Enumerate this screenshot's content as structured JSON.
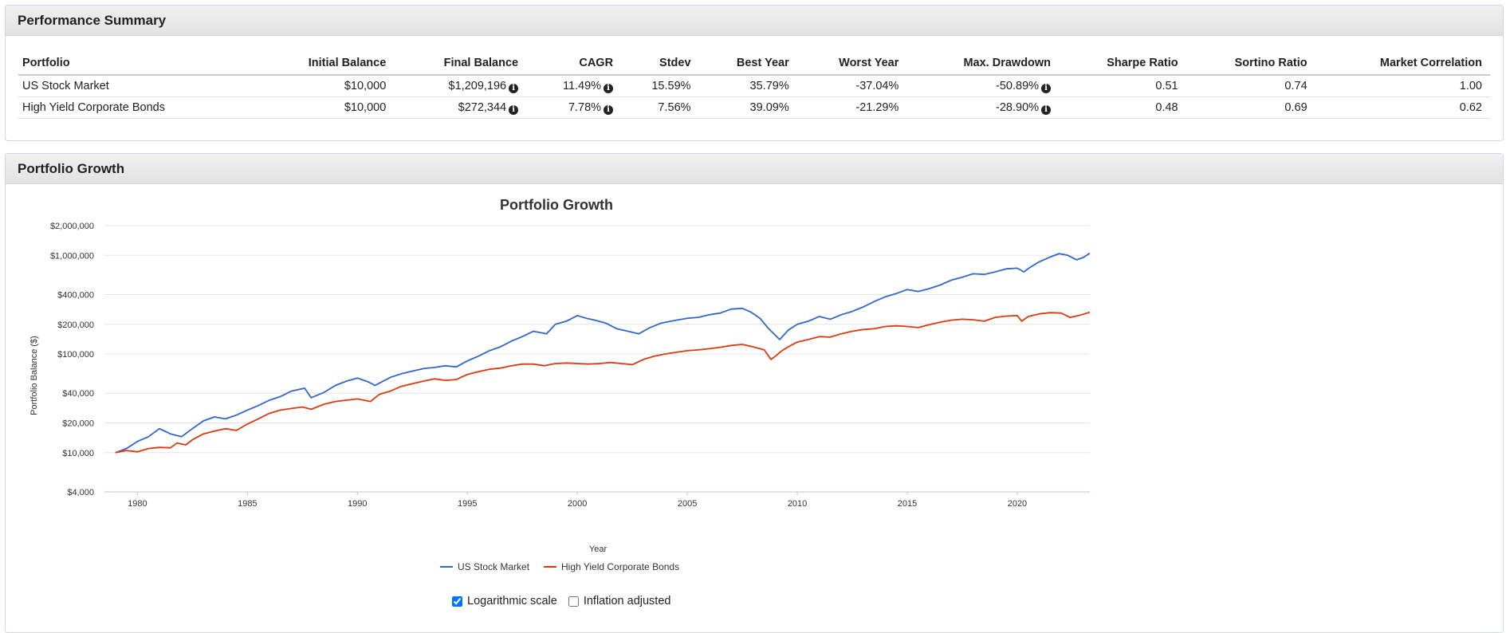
{
  "summary": {
    "heading": "Performance Summary",
    "columns": [
      "Portfolio",
      "Initial Balance",
      "Final Balance",
      "CAGR",
      "Stdev",
      "Best Year",
      "Worst Year",
      "Max. Drawdown",
      "Sharpe Ratio",
      "Sortino Ratio",
      "Market Correlation"
    ],
    "rows": [
      {
        "portfolio": "US Stock Market",
        "initial": "$10,000",
        "final": "$1,209,196",
        "cagr": "11.49%",
        "stdev": "15.59%",
        "best": "35.79%",
        "worst": "-37.04%",
        "drawdown": "-50.89%",
        "sharpe": "0.51",
        "sortino": "0.74",
        "correlation": "1.00"
      },
      {
        "portfolio": "High Yield Corporate Bonds",
        "initial": "$10,000",
        "final": "$272,344",
        "cagr": "7.78%",
        "stdev": "7.56%",
        "best": "39.09%",
        "worst": "-21.29%",
        "drawdown": "-28.90%",
        "sharpe": "0.48",
        "sortino": "0.69",
        "correlation": "0.62"
      }
    ]
  },
  "growth": {
    "heading": "Portfolio Growth",
    "options": {
      "log_label": "Logarithmic scale",
      "log_checked": true,
      "inflation_label": "Inflation adjusted",
      "inflation_checked": false
    }
  },
  "icons": {
    "info": "info-circle-icon"
  },
  "chart_data": {
    "type": "line",
    "title": "Portfolio Growth",
    "xlabel": "Year",
    "ylabel": "Portfolio Balance ($)",
    "yscale": "log",
    "ylim": [
      4000,
      2000000
    ],
    "xlim": [
      1978.5,
      2023.3
    ],
    "yticks": [
      4000,
      10000,
      20000,
      40000,
      100000,
      200000,
      400000,
      1000000,
      2000000
    ],
    "ytick_labels": [
      "$4,000",
      "$10,000",
      "$20,000",
      "$40,000",
      "$100,000",
      "$200,000",
      "$400,000",
      "$1,000,000",
      "$2,000,000"
    ],
    "xticks": [
      1980,
      1985,
      1990,
      1995,
      2000,
      2005,
      2010,
      2015,
      2020
    ],
    "grid": true,
    "legend_position": "bottom",
    "series": [
      {
        "name": "US Stock Market",
        "color": "#3366cc",
        "x": [
          1979,
          1979.5,
          1980,
          1980.5,
          1981,
          1981.5,
          1982,
          1982.5,
          1983,
          1983.5,
          1984,
          1984.5,
          1985,
          1985.5,
          1986,
          1986.5,
          1987,
          1987.6,
          1987.9,
          1988.5,
          1989,
          1989.5,
          1990,
          1990.5,
          1990.8,
          1991.5,
          1992,
          1992.5,
          1993,
          1993.5,
          1994,
          1994.5,
          1995,
          1995.5,
          1996,
          1996.5,
          1997,
          1997.5,
          1998,
          1998.6,
          1999,
          1999.5,
          2000,
          2000.4,
          2000.8,
          2001.3,
          2001.8,
          2002.3,
          2002.8,
          2003.3,
          2003.8,
          2004.5,
          2005,
          2005.5,
          2006,
          2006.5,
          2007,
          2007.5,
          2007.9,
          2008.3,
          2008.7,
          2009.2,
          2009.6,
          2010,
          2010.5,
          2011,
          2011.5,
          2012,
          2012.5,
          2013,
          2013.5,
          2014,
          2014.5,
          2015,
          2015.5,
          2016,
          2016.5,
          2017,
          2017.5,
          2018,
          2018.5,
          2019,
          2019.5,
          2020,
          2020.3,
          2020.6,
          2021,
          2021.5,
          2021.9,
          2022.3,
          2022.7,
          2023,
          2023.3
        ],
        "y": [
          10000,
          11000,
          13000,
          14500,
          17500,
          15500,
          14500,
          17500,
          21000,
          23000,
          22000,
          24000,
          27000,
          30000,
          34000,
          37000,
          42000,
          45000,
          36000,
          41000,
          48000,
          53000,
          57000,
          52000,
          48000,
          58000,
          63000,
          67000,
          71000,
          73000,
          76000,
          74000,
          85000,
          95000,
          108000,
          118000,
          135000,
          150000,
          170000,
          160000,
          200000,
          215000,
          245000,
          230000,
          220000,
          205000,
          180000,
          170000,
          160000,
          185000,
          205000,
          220000,
          230000,
          235000,
          250000,
          260000,
          285000,
          290000,
          265000,
          230000,
          180000,
          140000,
          175000,
          200000,
          215000,
          240000,
          225000,
          250000,
          270000,
          300000,
          340000,
          380000,
          410000,
          450000,
          430000,
          460000,
          500000,
          560000,
          600000,
          650000,
          640000,
          680000,
          730000,
          740000,
          680000,
          760000,
          860000,
          960000,
          1040000,
          1000000,
          900000,
          950000,
          1050000
        ]
      },
      {
        "name": "High Yield Corporate Bonds",
        "color": "#dc3912",
        "x": [
          1979,
          1979.5,
          1980,
          1980.5,
          1981,
          1981.5,
          1981.8,
          1982.2,
          1982.5,
          1983,
          1983.5,
          1984,
          1984.5,
          1985,
          1985.5,
          1986,
          1986.5,
          1987,
          1987.5,
          1987.9,
          1988.5,
          1989,
          1989.5,
          1990,
          1990.6,
          1991,
          1991.5,
          1992,
          1992.5,
          1993,
          1993.5,
          1994,
          1994.5,
          1995,
          1995.5,
          1996,
          1996.5,
          1997,
          1997.5,
          1998,
          1998.5,
          1999,
          1999.5,
          2000,
          2000.5,
          2001,
          2001.5,
          2002,
          2002.5,
          2003,
          2003.5,
          2004,
          2004.5,
          2005,
          2005.5,
          2006,
          2006.5,
          2007,
          2007.5,
          2008,
          2008.5,
          2008.8,
          2009,
          2009.3,
          2009.7,
          2010,
          2010.5,
          2011,
          2011.5,
          2012,
          2012.5,
          2013,
          2013.5,
          2014,
          2014.5,
          2015,
          2015.5,
          2016,
          2016.5,
          2017,
          2017.5,
          2018,
          2018.5,
          2019,
          2019.5,
          2020,
          2020.2,
          2020.5,
          2021,
          2021.5,
          2022,
          2022.4,
          2022.8,
          2023.3
        ],
        "y": [
          10000,
          10500,
          10200,
          11000,
          11300,
          11200,
          12500,
          12000,
          13500,
          15500,
          16500,
          17500,
          16800,
          19500,
          22000,
          25000,
          27000,
          28000,
          29000,
          27500,
          31000,
          33000,
          34000,
          35000,
          33000,
          39000,
          42000,
          47000,
          50000,
          53000,
          56000,
          54000,
          55000,
          62000,
          66000,
          70000,
          72000,
          76000,
          79000,
          79000,
          76000,
          80000,
          81000,
          80000,
          79000,
          80000,
          82000,
          80000,
          78000,
          88000,
          95000,
          100000,
          104000,
          108000,
          110000,
          113000,
          117000,
          122000,
          125000,
          118000,
          110000,
          88000,
          95000,
          108000,
          122000,
          132000,
          140000,
          150000,
          148000,
          160000,
          170000,
          177000,
          180000,
          190000,
          193000,
          190000,
          185000,
          198000,
          210000,
          220000,
          225000,
          222000,
          215000,
          235000,
          242000,
          245000,
          215000,
          240000,
          255000,
          262000,
          260000,
          235000,
          245000,
          265000
        ]
      }
    ]
  }
}
